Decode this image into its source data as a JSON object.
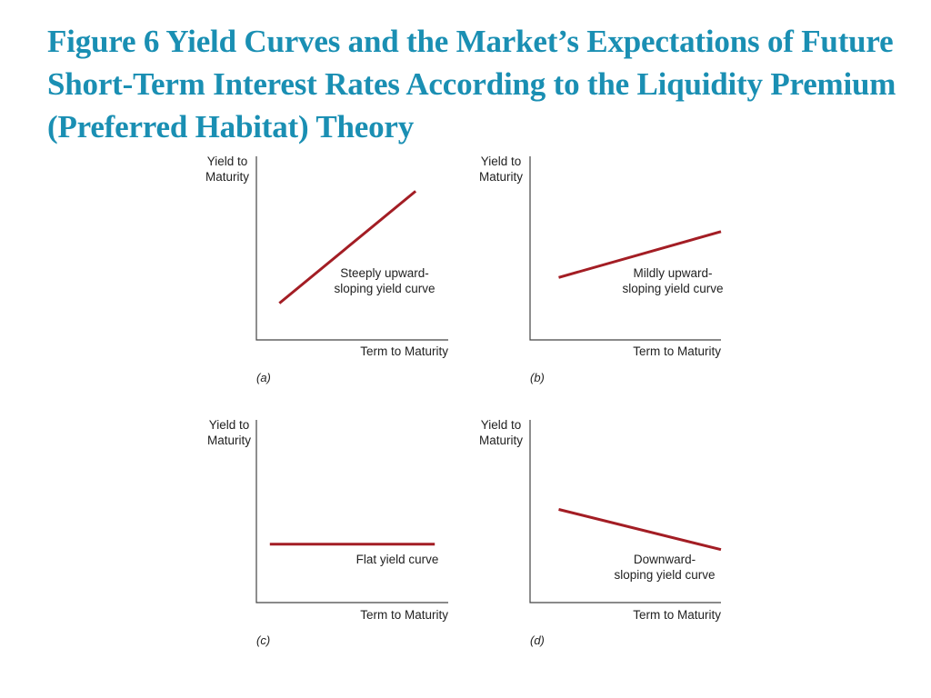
{
  "title": "Figure 6 Yield Curves and the Market’s Expectations of Future Short-Term Interest Rates According to the Liquidity Premium (Preferred Habitat) Theory",
  "chart_data": [
    {
      "type": "line",
      "panel": "(a)",
      "ylabel": [
        "Yield to",
        "Maturity"
      ],
      "xlabel": "Term to Maturity",
      "xlim": [
        0,
        10
      ],
      "ylim": [
        0,
        10
      ],
      "series": [
        {
          "name": "Steeply upward-sloping yield curve",
          "x": [
            1.2,
            8.3
          ],
          "y": [
            2.0,
            8.1
          ]
        }
      ],
      "annotation": [
        "Steeply upward-",
        "sloping yield curve"
      ]
    },
    {
      "type": "line",
      "panel": "(b)",
      "ylabel": [
        "Yield to",
        "Maturity"
      ],
      "xlabel": "Term to Maturity",
      "xlim": [
        0,
        10
      ],
      "ylim": [
        0,
        10
      ],
      "series": [
        {
          "name": "Mildly upward-sloping yield curve",
          "x": [
            1.5,
            10.0
          ],
          "y": [
            3.4,
            5.9
          ]
        }
      ],
      "annotation": [
        "Mildly upward-",
        "sloping yield curve"
      ]
    },
    {
      "type": "line",
      "panel": "(c)",
      "ylabel": [
        "Yield to",
        "Maturity"
      ],
      "xlabel": "Term to Maturity",
      "xlim": [
        0,
        10
      ],
      "ylim": [
        0,
        10
      ],
      "series": [
        {
          "name": "Flat yield curve",
          "x": [
            0.7,
            9.3
          ],
          "y": [
            3.2,
            3.2
          ]
        }
      ],
      "annotation": [
        "Flat yield curve"
      ]
    },
    {
      "type": "line",
      "panel": "(d)",
      "ylabel": [
        "Yield to",
        "Maturity"
      ],
      "xlabel": "Term to Maturity",
      "xlim": [
        0,
        10
      ],
      "ylim": [
        0,
        10
      ],
      "series": [
        {
          "name": "Downward-sloping yield curve",
          "x": [
            1.5,
            10.0
          ],
          "y": [
            5.1,
            2.9
          ]
        }
      ],
      "annotation": [
        "Downward-",
        "sloping yield curve"
      ]
    }
  ]
}
